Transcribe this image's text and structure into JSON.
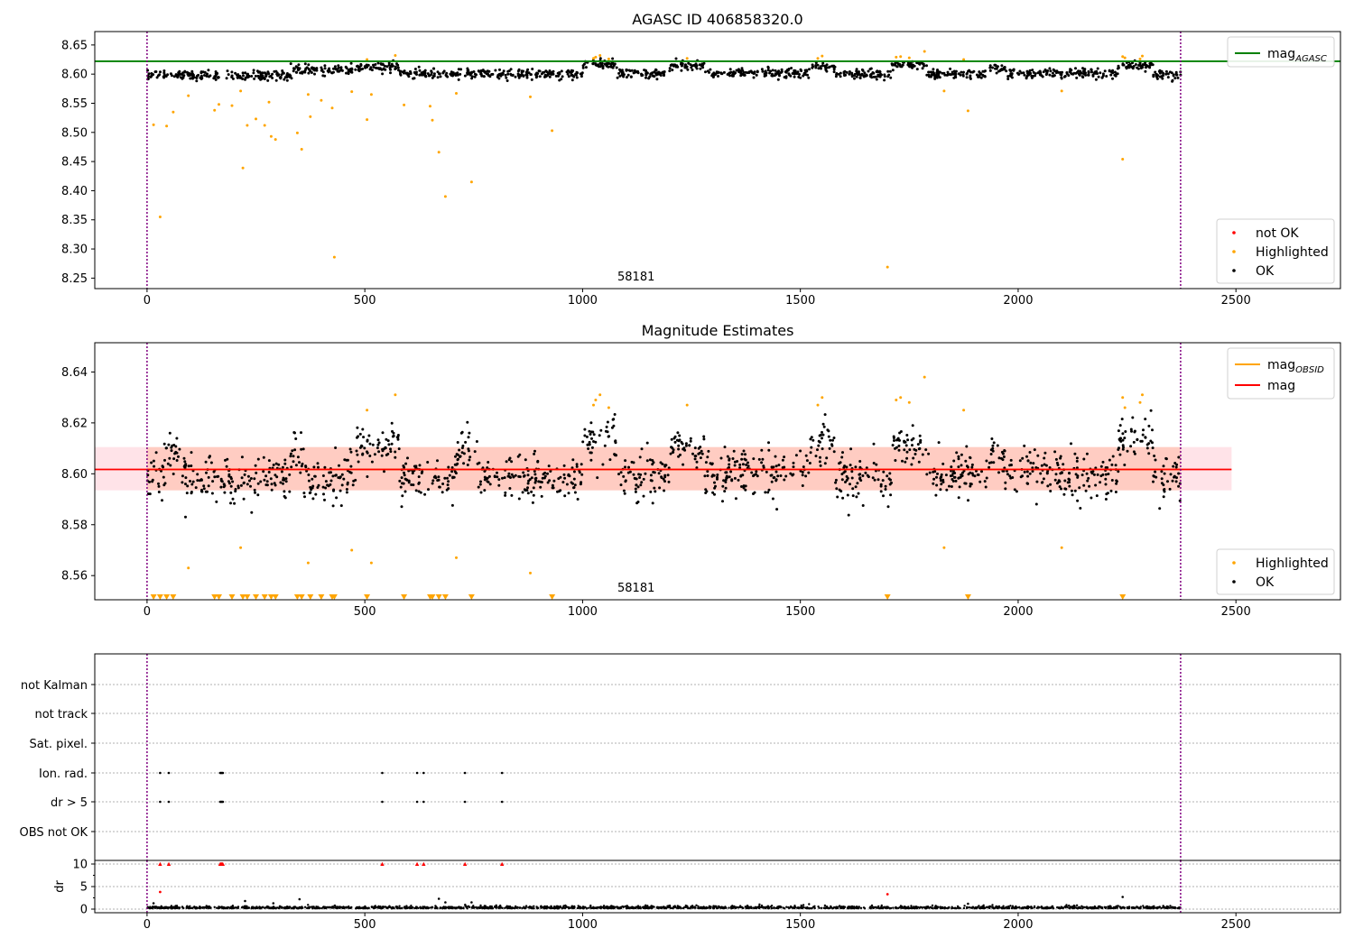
{
  "chart_data": [
    {
      "type": "scatter",
      "title": "AGASC ID 406858320.0",
      "xlim": [
        -120,
        2740
      ],
      "ylim": [
        8.232,
        8.673
      ],
      "xticks": [
        0,
        500,
        1000,
        1500,
        2000,
        2500
      ],
      "yticks": [
        8.25,
        8.3,
        8.35,
        8.4,
        8.45,
        8.5,
        8.55,
        8.6,
        8.65
      ],
      "ytick_labels": [
        "8.25",
        "8.30",
        "8.35",
        "8.40",
        "8.45",
        "8.50",
        "8.55",
        "8.60",
        "8.65"
      ],
      "vlines": [
        0,
        2373
      ],
      "hline": {
        "name": "mag_AGASC",
        "value": 8.622,
        "color": "#008000"
      },
      "obsid_label": {
        "text": "58181",
        "x": 1185
      },
      "legend_lines": [
        {
          "label": "mag",
          "sub": "AGASC",
          "color": "#008000"
        }
      ],
      "legend_points": [
        {
          "label": "not OK",
          "color": "#ff0000"
        },
        {
          "label": "Highlighted",
          "color": "#ffa500"
        },
        {
          "label": "OK",
          "color": "#000000"
        }
      ],
      "series": [
        {
          "name": "OK",
          "color": "#000000",
          "segments": [
            [
              0,
              330,
              8.598
            ],
            [
              330,
              480,
              8.607
            ],
            [
              480,
              580,
              8.612
            ],
            [
              580,
              1000,
              8.6
            ],
            [
              1000,
              1080,
              8.617
            ],
            [
              1080,
              1200,
              8.601
            ],
            [
              1200,
              1280,
              8.614
            ],
            [
              1280,
              1520,
              8.602
            ],
            [
              1520,
              1580,
              8.612
            ],
            [
              1580,
              1710,
              8.6
            ],
            [
              1710,
              1790,
              8.614
            ],
            [
              1790,
              1930,
              8.6
            ],
            [
              1930,
              1970,
              8.609
            ],
            [
              1970,
              2230,
              8.601
            ],
            [
              2230,
              2310,
              8.614
            ],
            [
              2310,
              2373,
              8.598
            ]
          ],
          "n": 1400,
          "spread": 0.008
        },
        {
          "name": "Highlighted",
          "color": "#ffa500",
          "points": [
            [
              15,
              8.513
            ],
            [
              30,
              8.355
            ],
            [
              45,
              8.511
            ],
            [
              60,
              8.535
            ],
            [
              95,
              8.563
            ],
            [
              155,
              8.538
            ],
            [
              165,
              8.548
            ],
            [
              195,
              8.546
            ],
            [
              215,
              8.571
            ],
            [
              220,
              8.439
            ],
            [
              230,
              8.512
            ],
            [
              250,
              8.523
            ],
            [
              270,
              8.512
            ],
            [
              280,
              8.552
            ],
            [
              285,
              8.493
            ],
            [
              295,
              8.488
            ],
            [
              345,
              8.499
            ],
            [
              355,
              8.471
            ],
            [
              370,
              8.565
            ],
            [
              375,
              8.527
            ],
            [
              400,
              8.555
            ],
            [
              425,
              8.542
            ],
            [
              430,
              8.286
            ],
            [
              470,
              8.57
            ],
            [
              505,
              8.522
            ],
            [
              515,
              8.565
            ],
            [
              590,
              8.547
            ],
            [
              650,
              8.545
            ],
            [
              655,
              8.521
            ],
            [
              670,
              8.466
            ],
            [
              685,
              8.39
            ],
            [
              710,
              8.567
            ],
            [
              745,
              8.415
            ],
            [
              880,
              8.561
            ],
            [
              930,
              8.503
            ],
            [
              1700,
              8.269
            ],
            [
              1830,
              8.571
            ],
            [
              1885,
              8.537
            ],
            [
              2100,
              8.571
            ],
            [
              2240,
              8.454
            ],
            [
              505,
              8.625
            ],
            [
              570,
              8.632
            ],
            [
              1025,
              8.627
            ],
            [
              1030,
              8.629
            ],
            [
              1040,
              8.632
            ],
            [
              1060,
              8.626
            ],
            [
              1240,
              8.627
            ],
            [
              1540,
              8.627
            ],
            [
              1550,
              8.631
            ],
            [
              1720,
              8.629
            ],
            [
              1730,
              8.63
            ],
            [
              1750,
              8.628
            ],
            [
              1785,
              8.639
            ],
            [
              1875,
              8.625
            ],
            [
              2240,
              8.63
            ],
            [
              2245,
              8.628
            ],
            [
              2280,
              8.626
            ],
            [
              2285,
              8.631
            ]
          ]
        }
      ]
    },
    {
      "type": "scatter",
      "title": "Magnitude Estimates",
      "xlim": [
        -120,
        2740
      ],
      "ylim": [
        8.5505,
        8.6515
      ],
      "xticks": [
        0,
        500,
        1000,
        1500,
        2000,
        2500
      ],
      "yticks": [
        8.56,
        8.58,
        8.6,
        8.62,
        8.64
      ],
      "ytick_labels": [
        "8.56",
        "8.58",
        "8.60",
        "8.62",
        "8.64"
      ],
      "vlines": [
        0,
        2373
      ],
      "hline": {
        "name": "mag",
        "value": 8.6017,
        "color": "#ff0000"
      },
      "band_outer": [
        8.5935,
        8.6105
      ],
      "band_inner_x": [
        0,
        2373
      ],
      "obsid_label": {
        "text": "58181",
        "x": 1185
      },
      "mag_obsid": {
        "value": 8.6017,
        "x0": 0,
        "x1": 2373,
        "color": "#ffa500"
      },
      "legend_lines": [
        {
          "label": "mag",
          "sub": "OBSID",
          "color": "#ffa500"
        },
        {
          "label": "mag",
          "sub": "",
          "color": "#ff0000"
        }
      ],
      "legend_points": [
        {
          "label": "Highlighted",
          "color": "#ffa500"
        },
        {
          "label": "OK",
          "color": "#000000"
        }
      ],
      "series": [
        {
          "name": "OK",
          "color": "#000000",
          "segments": [
            [
              0,
              40,
              8.599
            ],
            [
              40,
              80,
              8.609
            ],
            [
              80,
              330,
              8.598
            ],
            [
              330,
              360,
              8.61
            ],
            [
              360,
              480,
              8.598
            ],
            [
              480,
              580,
              8.61
            ],
            [
              580,
              710,
              8.598
            ],
            [
              710,
              760,
              8.609
            ],
            [
              760,
              1000,
              8.598
            ],
            [
              1000,
              1080,
              8.612
            ],
            [
              1080,
              1200,
              8.598
            ],
            [
              1200,
              1280,
              8.61
            ],
            [
              1280,
              1520,
              8.601
            ],
            [
              1520,
              1580,
              8.612
            ],
            [
              1580,
              1710,
              8.599
            ],
            [
              1710,
              1790,
              8.612
            ],
            [
              1790,
              1930,
              8.6
            ],
            [
              1930,
              1970,
              8.607
            ],
            [
              1970,
              2230,
              8.6
            ],
            [
              2230,
              2310,
              8.613
            ],
            [
              2310,
              2373,
              8.599
            ]
          ],
          "n": 1400,
          "spread": 0.009
        },
        {
          "name": "Highlighted",
          "color": "#ffa500",
          "points": [
            [
              95,
              8.563
            ],
            [
              215,
              8.571
            ],
            [
              370,
              8.565
            ],
            [
              470,
              8.57
            ],
            [
              515,
              8.565
            ],
            [
              710,
              8.567
            ],
            [
              880,
              8.561
            ],
            [
              1830,
              8.571
            ],
            [
              2100,
              8.571
            ],
            [
              505,
              8.625
            ],
            [
              570,
              8.631
            ],
            [
              1025,
              8.627
            ],
            [
              1030,
              8.629
            ],
            [
              1040,
              8.631
            ],
            [
              1060,
              8.626
            ],
            [
              1240,
              8.627
            ],
            [
              1540,
              8.627
            ],
            [
              1550,
              8.63
            ],
            [
              1720,
              8.629
            ],
            [
              1730,
              8.63
            ],
            [
              1750,
              8.628
            ],
            [
              1785,
              8.638
            ],
            [
              1875,
              8.625
            ],
            [
              2240,
              8.63
            ],
            [
              2245,
              8.626
            ],
            [
              2280,
              8.628
            ],
            [
              2285,
              8.631
            ]
          ]
        },
        {
          "name": "Highlighted (off-scale)",
          "color": "#ffa500",
          "marker": "triangle-down",
          "points": [
            15,
            30,
            45,
            60,
            155,
            165,
            195,
            220,
            230,
            250,
            270,
            285,
            295,
            345,
            355,
            375,
            400,
            425,
            430,
            505,
            590,
            650,
            655,
            670,
            685,
            745,
            930,
            1700,
            1885,
            2240
          ]
        }
      ]
    },
    {
      "type": "scatter",
      "title": "",
      "xlim": [
        -120,
        2740
      ],
      "flag_labels": [
        "not Kalman",
        "not track",
        "Sat. pixel.",
        "Ion. rad.",
        "dr > 5",
        "OBS not OK"
      ],
      "flag_points": {
        "Ion. rad.": [
          30,
          50,
          168,
          170,
          172,
          174,
          540,
          620,
          635,
          730,
          815
        ],
        "dr > 5": [
          30,
          50,
          168,
          170,
          172,
          174,
          540,
          620,
          635,
          730,
          815
        ]
      },
      "dr": {
        "ylabel": "dr",
        "ylim": [
          -0.8,
          10.8
        ],
        "yticks": [
          0,
          5,
          10
        ],
        "ytick_labels": [
          "0",
          "5",
          "10"
        ],
        "xticks": [
          0,
          500,
          1000,
          1500,
          2000,
          2500
        ],
        "vlines": [
          0,
          2373
        ],
        "capped_red": [
          30,
          50,
          168,
          170,
          172,
          174,
          540,
          620,
          635,
          730,
          815
        ],
        "red_points": [
          [
            30,
            3.8
          ],
          [
            1700,
            3.3
          ]
        ],
        "outliers": [
          [
            15,
            1.3
          ],
          [
            225,
            1.8
          ],
          [
            290,
            1.3
          ],
          [
            350,
            2.2
          ],
          [
            670,
            2.3
          ],
          [
            685,
            1.5
          ],
          [
            745,
            1.5
          ],
          [
            1885,
            1.2
          ],
          [
            2240,
            2.7
          ]
        ]
      }
    }
  ]
}
